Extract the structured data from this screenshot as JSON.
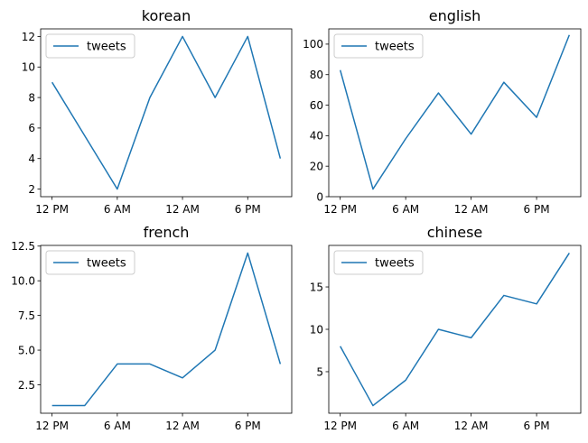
{
  "chart_data": [
    {
      "type": "line",
      "title": "korean",
      "xlabel": "",
      "ylabel": "",
      "x": [
        0,
        1,
        2,
        3,
        4,
        5,
        6,
        7
      ],
      "xticks": [
        0,
        2,
        4,
        6
      ],
      "xtick_labels": [
        "12 PM",
        "6 AM",
        "12 AM",
        "6 PM"
      ],
      "yticks": [
        2,
        4,
        6,
        8,
        10,
        12
      ],
      "ytick_labels": [
        "2",
        "4",
        "6",
        "8",
        "10",
        "12"
      ],
      "ylim": [
        1.5,
        12.5
      ],
      "legend": "upper-left",
      "series": [
        {
          "name": "tweets",
          "values": [
            9,
            5.5,
            2,
            8,
            12,
            8,
            12,
            4
          ]
        }
      ]
    },
    {
      "type": "line",
      "title": "english",
      "xlabel": "",
      "ylabel": "",
      "x": [
        0,
        1,
        2,
        3,
        4,
        5,
        6,
        7
      ],
      "xticks": [
        0,
        2,
        4,
        6
      ],
      "xtick_labels": [
        "12 PM",
        "6 AM",
        "12 AM",
        "6 PM"
      ],
      "yticks": [
        0,
        20,
        40,
        60,
        80,
        100
      ],
      "ytick_labels": [
        "0",
        "20",
        "40",
        "60",
        "80",
        "100"
      ],
      "ylim": [
        0,
        110
      ],
      "legend": "upper-left",
      "series": [
        {
          "name": "tweets",
          "values": [
            83,
            5,
            38,
            68,
            41,
            75,
            52,
            106
          ]
        }
      ]
    },
    {
      "type": "line",
      "title": "french",
      "xlabel": "",
      "ylabel": "",
      "x": [
        0,
        1,
        2,
        3,
        4,
        5,
        6,
        7
      ],
      "xticks": [
        0,
        2,
        4,
        6
      ],
      "xtick_labels": [
        "12 PM",
        "6 AM",
        "12 AM",
        "6 PM"
      ],
      "yticks": [
        2.5,
        5,
        7.5,
        10,
        12.5
      ],
      "ytick_labels": [
        "2.5",
        "5.0",
        "7.5",
        "10.0",
        "12.5"
      ],
      "ylim": [
        0.45,
        12.55
      ],
      "legend": "upper-left",
      "series": [
        {
          "name": "tweets",
          "values": [
            1,
            1,
            4,
            4,
            3,
            5,
            12,
            4
          ]
        }
      ]
    },
    {
      "type": "line",
      "title": "chinese",
      "xlabel": "",
      "ylabel": "",
      "x": [
        0,
        1,
        2,
        3,
        4,
        5,
        6,
        7
      ],
      "xticks": [
        0,
        2,
        4,
        6
      ],
      "xtick_labels": [
        "12 PM",
        "6 AM",
        "12 AM",
        "6 PM"
      ],
      "yticks": [
        5,
        10,
        15
      ],
      "ytick_labels": [
        "5",
        "10",
        "15"
      ],
      "ylim": [
        0.1,
        19.9
      ],
      "legend": "upper-left",
      "series": [
        {
          "name": "tweets",
          "values": [
            8,
            1,
            4,
            10,
            9,
            14,
            13,
            19
          ]
        }
      ]
    }
  ],
  "colors": {
    "line": "#1f77b4"
  }
}
